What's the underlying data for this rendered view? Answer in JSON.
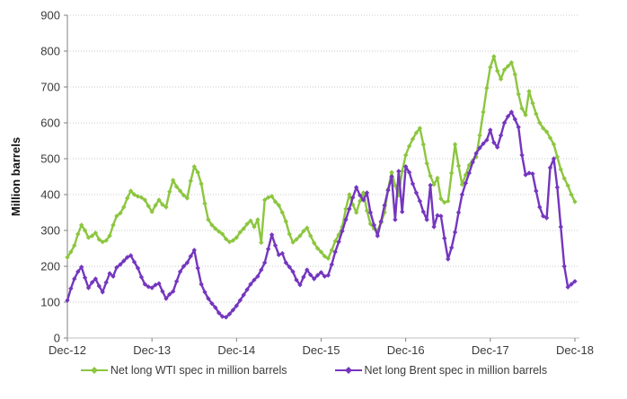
{
  "chart_data": {
    "type": "line",
    "title": "",
    "ylabel": "Million barrels",
    "xlabel": "",
    "ylim": [
      0,
      900
    ],
    "y_ticks": [
      0,
      100,
      200,
      300,
      400,
      500,
      600,
      700,
      800,
      900
    ],
    "x_tick_labels": [
      "Dec-12",
      "Dec-13",
      "Dec-14",
      "Dec-15",
      "Dec-16",
      "Dec-17",
      "Dec-18"
    ],
    "x_start_label": "Dec-12",
    "x_end_label": "Dec-18",
    "x_step_months": 0.5,
    "x_span_months": 72,
    "grid": true,
    "marker": "diamond",
    "legend_position": "bottom",
    "axis_color": "#808080",
    "grid_color": "#c9c9c9",
    "series": [
      {
        "id": "wti",
        "name": "Net long WTI spec in million barrels",
        "color": "#8CC63F",
        "values": [
          225,
          240,
          258,
          290,
          315,
          300,
          280,
          285,
          293,
          275,
          268,
          272,
          285,
          315,
          340,
          348,
          365,
          390,
          410,
          400,
          395,
          392,
          385,
          368,
          352,
          370,
          385,
          372,
          365,
          408,
          440,
          422,
          410,
          398,
          390,
          438,
          478,
          462,
          430,
          375,
          330,
          315,
          305,
          297,
          290,
          276,
          268,
          272,
          280,
          295,
          305,
          318,
          327,
          310,
          330,
          266,
          385,
          392,
          395,
          380,
          370,
          350,
          325,
          290,
          267,
          275,
          285,
          298,
          307,
          285,
          265,
          250,
          240,
          228,
          222,
          245,
          270,
          288,
          310,
          360,
          400,
          372,
          350,
          382,
          405,
          355,
          318,
          305,
          300,
          322,
          350,
          415,
          462,
          425,
          398,
          465,
          510,
          535,
          555,
          572,
          585,
          540,
          487,
          452,
          428,
          446,
          388,
          378,
          382,
          460,
          540,
          480,
          428,
          455,
          482,
          495,
          505,
          565,
          630,
          697,
          755,
          785,
          745,
          722,
          748,
          758,
          768,
          735,
          680,
          640,
          622,
          688,
          655,
          625,
          600,
          585,
          575,
          558,
          540,
          505,
          470,
          445,
          425,
          400,
          380
        ]
      },
      {
        "id": "brent",
        "name": "Net long Brent spec in million barrels",
        "color": "#7436BE",
        "values": [
          105,
          138,
          165,
          185,
          198,
          168,
          140,
          155,
          165,
          145,
          128,
          155,
          180,
          172,
          197,
          205,
          215,
          225,
          230,
          212,
          195,
          170,
          150,
          143,
          140,
          148,
          152,
          130,
          110,
          122,
          130,
          158,
          185,
          200,
          210,
          228,
          245,
          195,
          150,
          128,
          110,
          96,
          85,
          70,
          60,
          58,
          67,
          78,
          90,
          105,
          120,
          135,
          150,
          162,
          172,
          190,
          210,
          248,
          288,
          258,
          232,
          236,
          210,
          198,
          185,
          162,
          148,
          170,
          190,
          176,
          165,
          175,
          183,
          172,
          175,
          205,
          240,
          268,
          298,
          330,
          360,
          392,
          420,
          398,
          385,
          405,
          350,
          315,
          285,
          325,
          370,
          412,
          450,
          330,
          465,
          352,
          478,
          462,
          430,
          405,
          382,
          352,
          330,
          426,
          310,
          342,
          340,
          278,
          220,
          252,
          295,
          350,
          400,
          432,
          460,
          490,
          515,
          530,
          542,
          552,
          580,
          545,
          532,
          565,
          600,
          618,
          630,
          610,
          588,
          510,
          455,
          460,
          458,
          410,
          365,
          340,
          335,
          475,
          500,
          420,
          310,
          200,
          142,
          150,
          158
        ]
      }
    ]
  }
}
